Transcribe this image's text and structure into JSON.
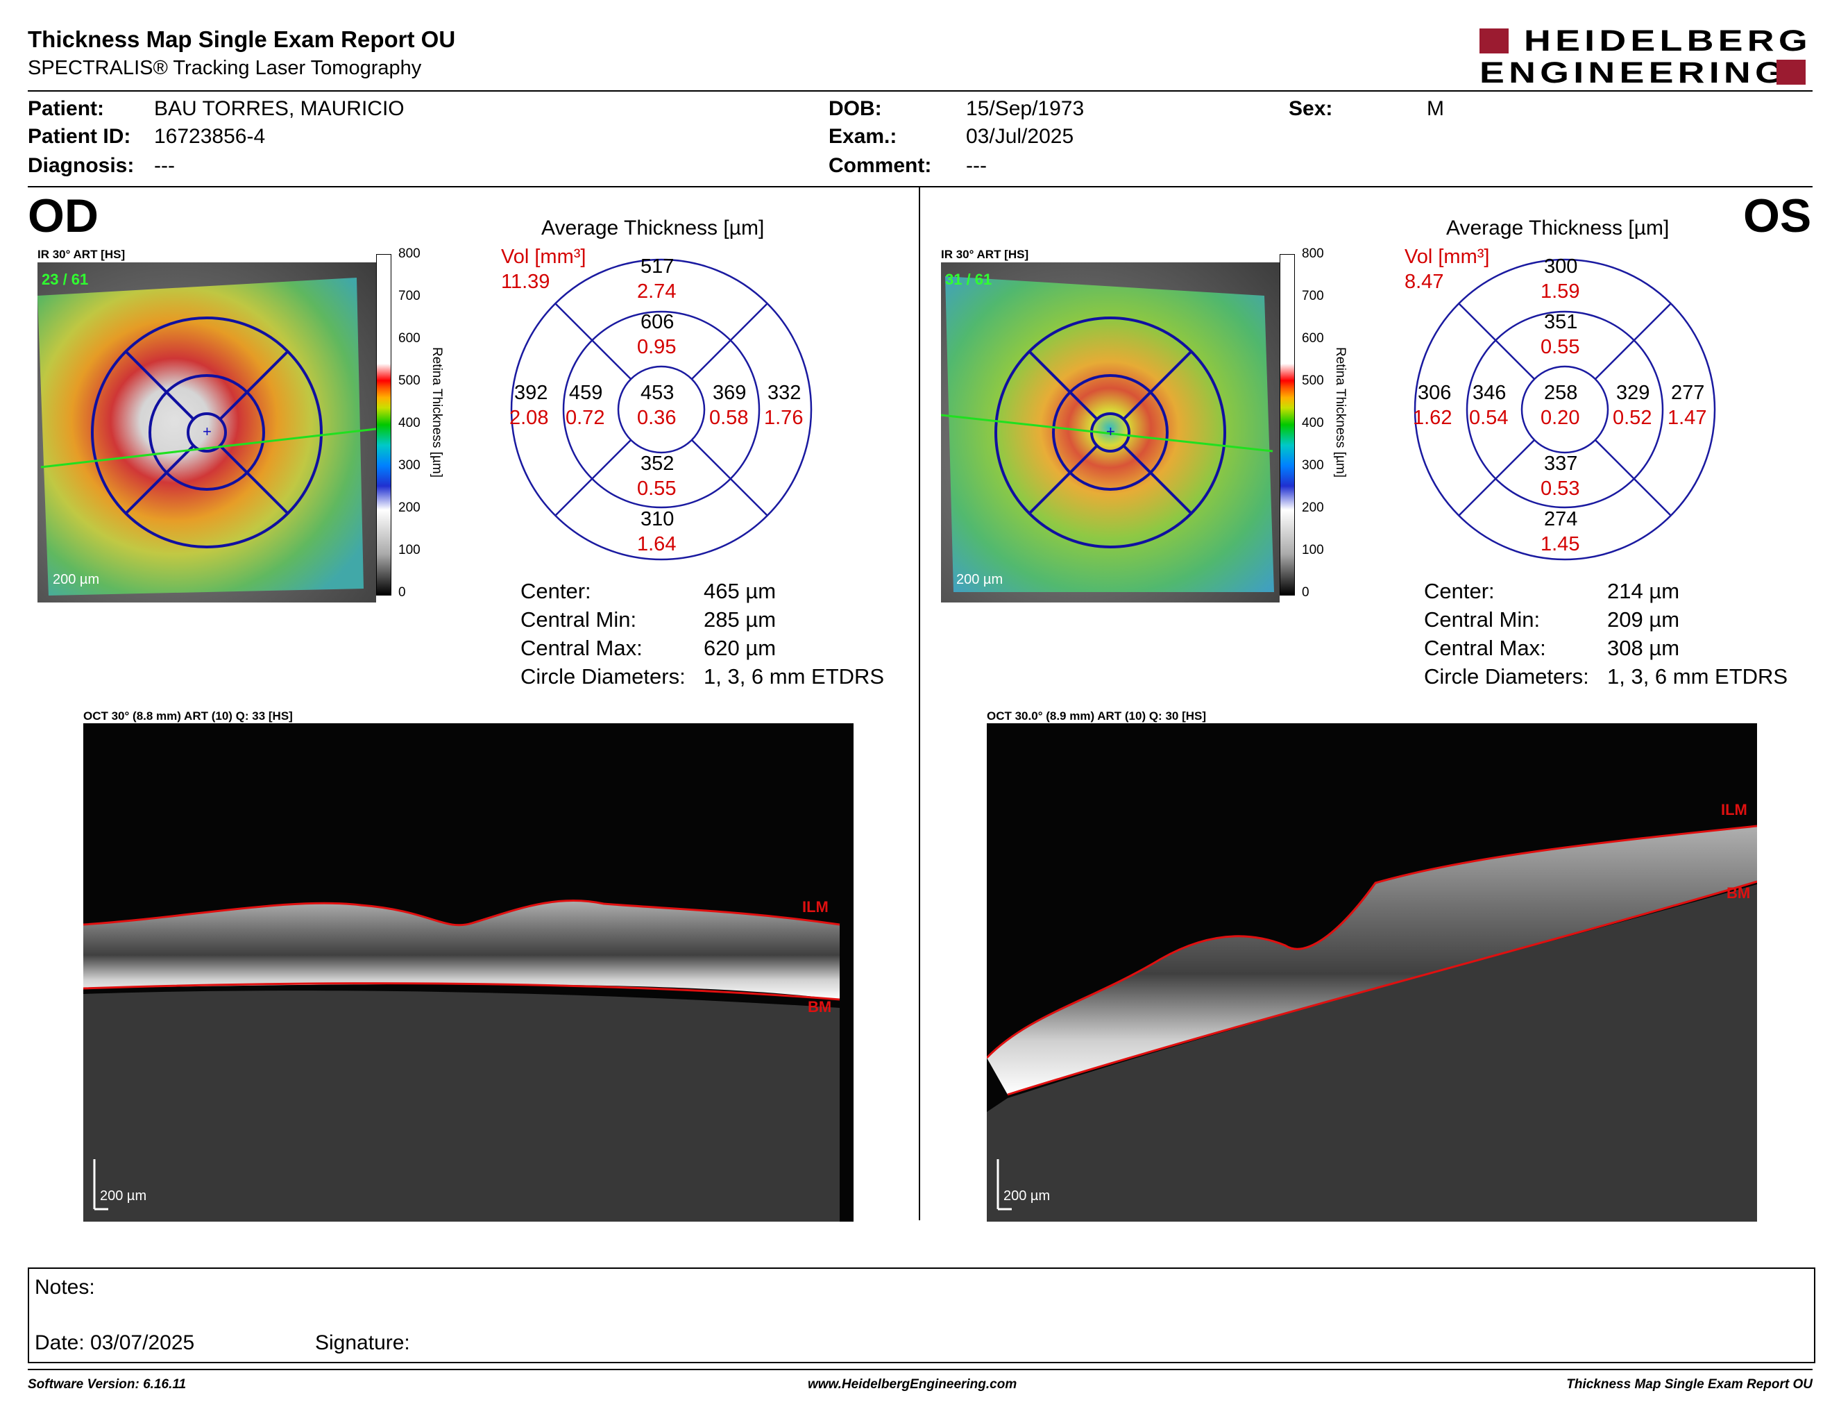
{
  "header": {
    "title": "Thickness Map Single Exam Report OU",
    "subtitle": "SPECTRALIS® Tracking Laser Tomography",
    "logo_line1": "HEIDELBERG",
    "logo_line2": "ENGINEERING",
    "logo_color": "#9b1b30"
  },
  "patient": {
    "patient_label": "Patient:",
    "patient_value": "BAU TORRES, MAURICIO",
    "id_label": "Patient ID:",
    "id_value": "16723856-4",
    "diagnosis_label": "Diagnosis:",
    "diagnosis_value": "---",
    "dob_label": "DOB:",
    "dob_value": "15/Sep/1973",
    "exam_label": "Exam.:",
    "exam_value": "03/Jul/2025",
    "comment_label": "Comment:",
    "comment_value": "---",
    "sex_label": "Sex:",
    "sex_value": "M"
  },
  "od": {
    "eye": "OD",
    "ir_label": "IR 30° ART [HS]",
    "frames": "23 / 61",
    "scale": "200 µm",
    "avg_title": "Average Thickness [µm]",
    "vol_label": "Vol [mm³]",
    "vol_total": "11.39",
    "grid": {
      "center": {
        "t": "453",
        "v": "0.36"
      },
      "inner_sup": {
        "t": "606",
        "v": "0.95"
      },
      "inner_inf": {
        "t": "352",
        "v": "0.55"
      },
      "inner_left": {
        "t": "459",
        "v": "0.72"
      },
      "inner_right": {
        "t": "369",
        "v": "0.58"
      },
      "outer_sup": {
        "t": "517",
        "v": "2.74"
      },
      "outer_inf": {
        "t": "310",
        "v": "1.64"
      },
      "outer_left": {
        "t": "392",
        "v": "2.08"
      },
      "outer_right": {
        "t": "332",
        "v": "1.76"
      }
    },
    "stats": {
      "center_label": "Center:",
      "center_value": "465 µm",
      "min_label": "Central Min:",
      "min_value": "285 µm",
      "max_label": "Central Max:",
      "max_value": "620 µm",
      "diam_label": "Circle Diameters:",
      "diam_value": "1, 3, 6 mm ETDRS"
    },
    "oct_label": "OCT 30° (8.8 mm) ART (10) Q: 33 [HS]",
    "oct_scale": "200 µm",
    "ilm": "ILM",
    "bm": "BM"
  },
  "os": {
    "eye": "OS",
    "ir_label": "IR 30° ART [HS]",
    "frames": "31 / 61",
    "scale": "200 µm",
    "avg_title": "Average Thickness [µm]",
    "vol_label": "Vol [mm³]",
    "vol_total": "8.47",
    "grid": {
      "center": {
        "t": "258",
        "v": "0.20"
      },
      "inner_sup": {
        "t": "351",
        "v": "0.55"
      },
      "inner_inf": {
        "t": "337",
        "v": "0.53"
      },
      "inner_left": {
        "t": "346",
        "v": "0.54"
      },
      "inner_right": {
        "t": "329",
        "v": "0.52"
      },
      "outer_sup": {
        "t": "300",
        "v": "1.59"
      },
      "outer_inf": {
        "t": "274",
        "v": "1.45"
      },
      "outer_left": {
        "t": "306",
        "v": "1.62"
      },
      "outer_right": {
        "t": "277",
        "v": "1.47"
      }
    },
    "stats": {
      "center_label": "Center:",
      "center_value": "214 µm",
      "min_label": "Central Min:",
      "min_value": "209 µm",
      "max_label": "Central Max:",
      "max_value": "308 µm",
      "diam_label": "Circle Diameters:",
      "diam_value": "1, 3, 6 mm ETDRS"
    },
    "oct_label": "OCT 30.0° (8.9 mm) ART (10) Q: 30 [HS]",
    "oct_scale": "200 µm",
    "ilm": "ILM",
    "bm": "BM"
  },
  "colorbar": {
    "ticks": [
      "800",
      "700",
      "600",
      "500",
      "400",
      "300",
      "200",
      "100",
      "0"
    ],
    "title": "Retina  Thickness [µm]"
  },
  "notes": {
    "notes_label": "Notes:",
    "date_label": "Date: 03/07/2025",
    "signature_label": "Signature:"
  },
  "footer": {
    "software": "Software Version: 6.16.11",
    "website": "www.HeidelbergEngineering.com",
    "report": "Thickness Map Single Exam Report OU"
  }
}
